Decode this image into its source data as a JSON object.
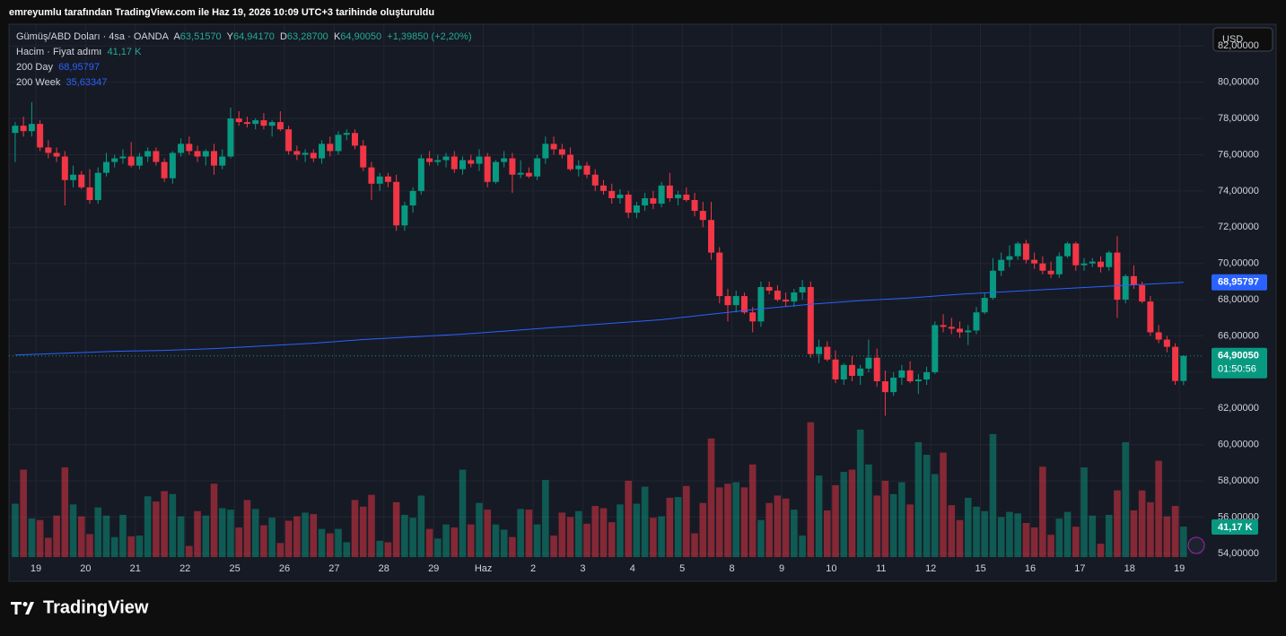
{
  "header": "emreyumlu tarafından TradingView.com ile Haz 19, 2026 10:09 UTC+3 tarihinde oluşturuldu",
  "legend": {
    "symbol": "Gümüş/ABD Doları · 4sa · OANDA",
    "o_label": "A",
    "o": "63,51570",
    "h_label": "Y",
    "h": "64,94170",
    "l_label": "D",
    "l": "63,28700",
    "c_label": "K",
    "c": "64,90050",
    "change": "+1,39850 (+2,20%)",
    "volume_name": "Hacim · Fiyat adımı",
    "volume_value": "41,17 K",
    "ma_name": "200 Day",
    "ma_value": "68,95797",
    "ma2_name": "200 Week",
    "ma2_value": "35,63347"
  },
  "currency_button": "USD",
  "price_box": "64,90050",
  "countdown": "01:50:56",
  "ma_box": "68,95797",
  "volume_box": "41,17 K",
  "footer": "TradingView",
  "chart_data": {
    "type": "candlestick",
    "up_color": "#089981",
    "down_color": "#f23645",
    "ma_color": "#2962ff",
    "grid": true,
    "categories": [
      "19",
      "20",
      "21",
      "22",
      "25",
      "26",
      "27",
      "28",
      "29",
      "Haz",
      "2",
      "3",
      "4",
      "5",
      "8",
      "9",
      "10",
      "11",
      "12",
      "15",
      "16",
      "17",
      "18",
      "19"
    ],
    "ylim": [
      53.8,
      83.2
    ],
    "yticks": [
      {
        "value": 54,
        "label": "54,00000"
      },
      {
        "value": 56,
        "label": "56,00000"
      },
      {
        "value": 58,
        "label": "58,00000"
      },
      {
        "value": 60,
        "label": "60,00000"
      },
      {
        "value": 62,
        "label": "62,00000"
      },
      {
        "value": 64,
        "label": "64,00000"
      },
      {
        "value": 66,
        "label": "66,00000"
      },
      {
        "value": 68,
        "label": "68,00000"
      },
      {
        "value": 70,
        "label": "70,00000"
      },
      {
        "value": 72,
        "label": "72,00000"
      },
      {
        "value": 74,
        "label": "74,00000"
      },
      {
        "value": 76,
        "label": "76,00000"
      },
      {
        "value": 78,
        "label": "78,00000"
      },
      {
        "value": 80,
        "label": "80,00000"
      },
      {
        "value": 82,
        "label": "82,00000"
      }
    ],
    "ohlc": [
      [
        77.2,
        77.8,
        75.6,
        77.6
      ],
      [
        77.6,
        78.1,
        77.0,
        77.3
      ],
      [
        77.3,
        78.9,
        77.0,
        77.7
      ],
      [
        77.7,
        77.9,
        76.2,
        76.4
      ],
      [
        76.4,
        76.8,
        75.8,
        76.1
      ],
      [
        76.1,
        76.4,
        75.6,
        75.9
      ],
      [
        75.9,
        76.2,
        73.2,
        74.6
      ],
      [
        74.6,
        75.4,
        74.2,
        74.9
      ],
      [
        74.9,
        75.1,
        74.1,
        74.2
      ],
      [
        74.2,
        75.2,
        73.3,
        73.5
      ],
      [
        73.5,
        75.3,
        73.3,
        75.0
      ],
      [
        75.0,
        76.1,
        74.8,
        75.6
      ],
      [
        75.6,
        76.0,
        75.3,
        75.8
      ],
      [
        75.8,
        76.3,
        75.5,
        75.9
      ],
      [
        75.9,
        76.7,
        75.3,
        75.4
      ],
      [
        75.4,
        76.1,
        75.2,
        75.9
      ],
      [
        75.9,
        76.4,
        75.6,
        76.2
      ],
      [
        76.2,
        76.4,
        75.4,
        75.6
      ],
      [
        75.6,
        75.8,
        74.5,
        74.7
      ],
      [
        74.7,
        76.2,
        74.4,
        76.1
      ],
      [
        76.1,
        76.9,
        75.9,
        76.6
      ],
      [
        76.6,
        77.0,
        76.0,
        76.2
      ],
      [
        76.2,
        76.5,
        75.6,
        75.9
      ],
      [
        75.9,
        76.3,
        75.4,
        76.2
      ],
      [
        76.2,
        76.6,
        74.9,
        75.4
      ],
      [
        75.4,
        76.3,
        75.2,
        75.9
      ],
      [
        75.9,
        78.6,
        75.8,
        78.0
      ],
      [
        78.0,
        78.4,
        77.6,
        77.8
      ],
      [
        77.8,
        78.1,
        77.5,
        77.7
      ],
      [
        77.7,
        78.0,
        77.4,
        77.9
      ],
      [
        77.9,
        78.3,
        77.4,
        77.6
      ],
      [
        77.6,
        77.9,
        77.0,
        77.8
      ],
      [
        77.8,
        78.4,
        77.3,
        77.4
      ],
      [
        77.4,
        77.6,
        76.0,
        76.2
      ],
      [
        76.2,
        76.5,
        75.7,
        76.0
      ],
      [
        76.0,
        76.3,
        75.6,
        76.1
      ],
      [
        76.1,
        76.3,
        75.6,
        75.8
      ],
      [
        75.8,
        76.8,
        75.5,
        76.6
      ],
      [
        76.6,
        77.0,
        75.9,
        76.2
      ],
      [
        76.2,
        77.3,
        76.0,
        77.1
      ],
      [
        77.1,
        77.4,
        76.8,
        77.2
      ],
      [
        77.2,
        77.4,
        76.3,
        76.5
      ],
      [
        76.5,
        76.8,
        75.1,
        75.3
      ],
      [
        75.3,
        75.6,
        73.5,
        74.4
      ],
      [
        74.4,
        75.0,
        74.0,
        74.8
      ],
      [
        74.8,
        75.0,
        74.2,
        74.5
      ],
      [
        74.5,
        74.9,
        71.8,
        72.1
      ],
      [
        72.1,
        73.4,
        71.8,
        73.2
      ],
      [
        73.2,
        74.2,
        72.8,
        74.0
      ],
      [
        74.0,
        76.0,
        73.8,
        75.8
      ],
      [
        75.8,
        76.2,
        75.4,
        75.6
      ],
      [
        75.6,
        76.0,
        75.4,
        75.7
      ],
      [
        75.7,
        76.1,
        75.3,
        75.9
      ],
      [
        75.9,
        76.2,
        75.0,
        75.2
      ],
      [
        75.2,
        75.9,
        74.9,
        75.7
      ],
      [
        75.7,
        76.0,
        75.3,
        75.5
      ],
      [
        75.5,
        76.3,
        75.1,
        75.9
      ],
      [
        75.9,
        76.1,
        74.2,
        74.5
      ],
      [
        74.5,
        75.7,
        74.4,
        75.6
      ],
      [
        75.6,
        76.2,
        75.3,
        75.8
      ],
      [
        75.8,
        76.1,
        73.9,
        74.9
      ],
      [
        74.9,
        75.7,
        74.7,
        75.0
      ],
      [
        75.0,
        75.3,
        74.7,
        74.8
      ],
      [
        74.8,
        76.0,
        74.6,
        75.8
      ],
      [
        75.8,
        77.0,
        75.5,
        76.6
      ],
      [
        76.6,
        77.0,
        76.0,
        76.3
      ],
      [
        76.3,
        76.6,
        75.8,
        76.0
      ],
      [
        76.0,
        76.4,
        75.1,
        75.2
      ],
      [
        75.2,
        75.7,
        74.8,
        75.4
      ],
      [
        75.4,
        75.6,
        74.7,
        74.9
      ],
      [
        74.9,
        75.2,
        74.0,
        74.3
      ],
      [
        74.3,
        74.6,
        73.8,
        74.0
      ],
      [
        74.0,
        74.4,
        73.3,
        73.6
      ],
      [
        73.6,
        74.1,
        73.3,
        73.8
      ],
      [
        73.8,
        74.0,
        72.5,
        72.8
      ],
      [
        72.8,
        73.4,
        72.5,
        73.2
      ],
      [
        73.2,
        73.9,
        72.9,
        73.6
      ],
      [
        73.6,
        74.0,
        73.0,
        73.3
      ],
      [
        73.3,
        74.5,
        73.1,
        74.3
      ],
      [
        74.3,
        75.0,
        73.4,
        73.6
      ],
      [
        73.6,
        74.0,
        73.2,
        73.8
      ],
      [
        73.8,
        74.2,
        73.4,
        73.5
      ],
      [
        73.5,
        73.9,
        72.6,
        72.9
      ],
      [
        72.9,
        73.4,
        72.0,
        72.4
      ],
      [
        72.4,
        73.4,
        70.2,
        70.6
      ],
      [
        70.6,
        70.9,
        67.8,
        68.2
      ],
      [
        68.2,
        68.6,
        66.8,
        67.7
      ],
      [
        67.7,
        68.5,
        67.3,
        68.2
      ],
      [
        68.2,
        68.4,
        67.2,
        67.3
      ],
      [
        67.3,
        67.6,
        66.2,
        66.8
      ],
      [
        66.8,
        69.0,
        66.5,
        68.7
      ],
      [
        68.7,
        69.0,
        68.3,
        68.5
      ],
      [
        68.5,
        68.8,
        67.9,
        68.0
      ],
      [
        68.0,
        68.4,
        67.6,
        67.9
      ],
      [
        67.9,
        68.6,
        67.6,
        68.4
      ],
      [
        68.4,
        69.1,
        68.0,
        68.7
      ],
      [
        68.7,
        69.0,
        64.8,
        65.0
      ],
      [
        65.0,
        65.8,
        64.5,
        65.4
      ],
      [
        65.4,
        65.7,
        64.6,
        64.7
      ],
      [
        64.7,
        65.2,
        63.4,
        63.6
      ],
      [
        63.6,
        64.5,
        63.3,
        64.4
      ],
      [
        64.4,
        64.9,
        63.5,
        63.8
      ],
      [
        63.8,
        64.4,
        63.3,
        64.2
      ],
      [
        64.2,
        65.8,
        64.0,
        64.8
      ],
      [
        64.8,
        65.3,
        63.2,
        63.5
      ],
      [
        63.5,
        64.1,
        61.6,
        62.9
      ],
      [
        62.9,
        64.0,
        62.7,
        63.7
      ],
      [
        63.7,
        64.4,
        63.3,
        64.1
      ],
      [
        64.1,
        64.6,
        63.4,
        63.5
      ],
      [
        63.5,
        63.9,
        62.8,
        63.6
      ],
      [
        63.6,
        64.3,
        63.3,
        64.0
      ],
      [
        64.0,
        66.8,
        63.9,
        66.6
      ],
      [
        66.6,
        67.2,
        66.2,
        66.5
      ],
      [
        66.5,
        67.0,
        66.1,
        66.4
      ],
      [
        66.4,
        66.8,
        65.9,
        66.2
      ],
      [
        66.2,
        66.6,
        65.5,
        66.3
      ],
      [
        66.3,
        67.6,
        66.1,
        67.3
      ],
      [
        67.3,
        68.4,
        67.2,
        68.1
      ],
      [
        68.1,
        70.3,
        68.0,
        69.6
      ],
      [
        69.6,
        70.6,
        69.3,
        70.2
      ],
      [
        70.2,
        71.0,
        69.8,
        70.4
      ],
      [
        70.4,
        71.2,
        70.2,
        71.1
      ],
      [
        71.1,
        71.3,
        70.0,
        70.2
      ],
      [
        70.2,
        70.6,
        69.7,
        70.0
      ],
      [
        70.0,
        70.4,
        69.4,
        69.6
      ],
      [
        69.6,
        70.1,
        69.2,
        69.4
      ],
      [
        69.4,
        70.6,
        69.2,
        70.4
      ],
      [
        70.4,
        71.2,
        70.3,
        71.1
      ],
      [
        71.1,
        71.2,
        69.6,
        69.9
      ],
      [
        69.9,
        70.3,
        69.6,
        70.0
      ],
      [
        70.0,
        70.3,
        69.8,
        70.1
      ],
      [
        70.1,
        70.4,
        69.5,
        69.8
      ],
      [
        69.8,
        70.7,
        69.6,
        70.6
      ],
      [
        70.6,
        71.5,
        67.0,
        68.0
      ],
      [
        68.0,
        69.4,
        67.8,
        69.3
      ],
      [
        69.3,
        69.9,
        68.6,
        68.8
      ],
      [
        68.8,
        69.0,
        67.8,
        67.9
      ],
      [
        67.9,
        68.2,
        66.0,
        66.2
      ],
      [
        66.2,
        66.6,
        65.6,
        65.8
      ],
      [
        65.8,
        66.0,
        65.1,
        65.4
      ],
      [
        65.4,
        65.6,
        63.3,
        63.5157
      ],
      [
        63.5157,
        64.9417,
        63.287,
        64.9005
      ]
    ],
    "volumes": [
      72,
      118,
      52,
      50,
      26,
      56,
      121,
      71,
      55,
      31,
      67,
      56,
      27,
      57,
      28,
      29,
      82,
      75,
      89,
      85,
      55,
      15,
      62,
      56,
      99,
      66,
      64,
      40,
      77,
      65,
      43,
      53,
      19,
      49,
      55,
      60,
      58,
      38,
      32,
      38,
      20,
      77,
      68,
      84,
      22,
      20,
      74,
      57,
      53,
      83,
      38,
      25,
      44,
      40,
      118,
      44,
      73,
      64,
      44,
      37,
      27,
      65,
      64,
      44,
      104,
      29,
      60,
      54,
      62,
      45,
      69,
      66,
      47,
      71,
      103,
      72,
      95,
      53,
      55,
      80,
      81,
      96,
      32,
      73,
      160,
      94,
      99,
      101,
      94,
      125,
      50,
      73,
      83,
      79,
      64,
      29,
      182,
      110,
      63,
      97,
      115,
      118,
      172,
      125,
      83,
      103,
      85,
      101,
      71,
      155,
      138,
      112,
      141,
      70,
      50,
      80,
      68,
      62,
      166,
      54,
      61,
      59,
      46,
      40,
      122,
      30,
      52,
      61,
      41,
      121,
      56,
      18,
      57,
      90,
      155,
      63,
      90,
      74,
      130,
      55,
      69,
      41.17
    ],
    "ma": {
      "name": "200 Day",
      "x": [
        0,
        6,
        12,
        18,
        24,
        30,
        36,
        42,
        48,
        54,
        60,
        66,
        72,
        78,
        84,
        90,
        96,
        102,
        108,
        114,
        120,
        126,
        132,
        141
      ],
      "values": [
        64.95,
        65.05,
        65.15,
        65.2,
        65.3,
        65.45,
        65.6,
        65.8,
        65.95,
        66.1,
        66.3,
        66.5,
        66.7,
        66.9,
        67.2,
        67.5,
        67.75,
        67.95,
        68.1,
        68.3,
        68.45,
        68.6,
        68.75,
        68.958
      ]
    }
  }
}
